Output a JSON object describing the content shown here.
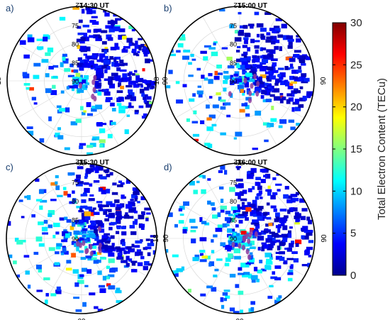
{
  "chart_data": [
    {
      "type": "polar-map",
      "panel_label": "a)",
      "title": "14:30 UT",
      "mlt_labels": {
        "top": "12",
        "right": "06",
        "bottom": "00",
        "left": "18"
      },
      "lat_labels": [
        "75",
        "80",
        "85",
        "90"
      ],
      "lat_range": [
        70,
        90
      ]
    },
    {
      "type": "polar-map",
      "panel_label": "b)",
      "title": "15:00 UT",
      "mlt_labels": {
        "top": "12",
        "right": "06",
        "bottom": "00",
        "left": "18"
      },
      "lat_labels": [
        "75",
        "80",
        "85",
        "90"
      ],
      "lat_range": [
        70,
        90
      ]
    },
    {
      "type": "polar-map",
      "panel_label": "c)",
      "title": "15:30 UT",
      "mlt_labels": {
        "top": "12",
        "right": "06",
        "bottom": "00",
        "left": "18"
      },
      "lat_labels": [
        "75",
        "80",
        "85",
        "90"
      ],
      "lat_range": [
        70,
        90
      ]
    },
    {
      "type": "polar-map",
      "panel_label": "d)",
      "title": "16:00 UT",
      "mlt_labels": {
        "top": "12",
        "right": "06",
        "bottom": "00",
        "left": "18"
      },
      "lat_labels": [
        "75",
        "80",
        "85",
        "90"
      ],
      "lat_range": [
        70,
        90
      ]
    }
  ],
  "colorbar": {
    "label": "Total Electron Content (TECu)",
    "min": 0,
    "max": 30,
    "ticks": [
      "0",
      "5",
      "10",
      "15",
      "20",
      "25",
      "30"
    ],
    "colormap": [
      "#00008f",
      "#0000ff",
      "#0080ff",
      "#00ffff",
      "#80ff80",
      "#ffff00",
      "#ff8000",
      "#ff0000",
      "#800000"
    ]
  },
  "colors": {
    "trace": "#8e3b9e",
    "grid": "#d8d8d8",
    "frame": "#000000"
  }
}
